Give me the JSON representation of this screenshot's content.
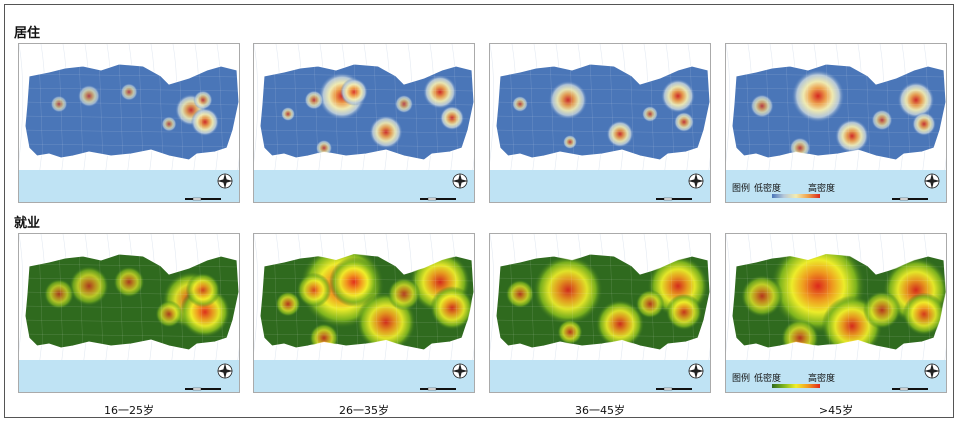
{
  "rows": [
    {
      "label": "居住",
      "theme": "residence"
    },
    {
      "label": "就业",
      "theme": "employment"
    }
  ],
  "age_groups": [
    "16一25岁",
    "26一35岁",
    "36一45岁",
    ">45岁"
  ],
  "legend": {
    "title": "图例",
    "low": "低密度",
    "high": "高密度"
  },
  "colors": {
    "sea": "#bfe3f4",
    "residence_base": "#4a76b8",
    "residence_ramp": [
      "#4a76b8",
      "#b7c9d9",
      "#f3ecb0",
      "#f0a04a",
      "#d8261d"
    ],
    "employment_base": "#2f6a1e",
    "employment_ramp": [
      "#2f6a1e",
      "#7fb51e",
      "#f1ef2a",
      "#f39a1f",
      "#e0261c"
    ]
  },
  "icons": {
    "north": "compass-rose-icon",
    "scale": "scale-bar-icon"
  }
}
